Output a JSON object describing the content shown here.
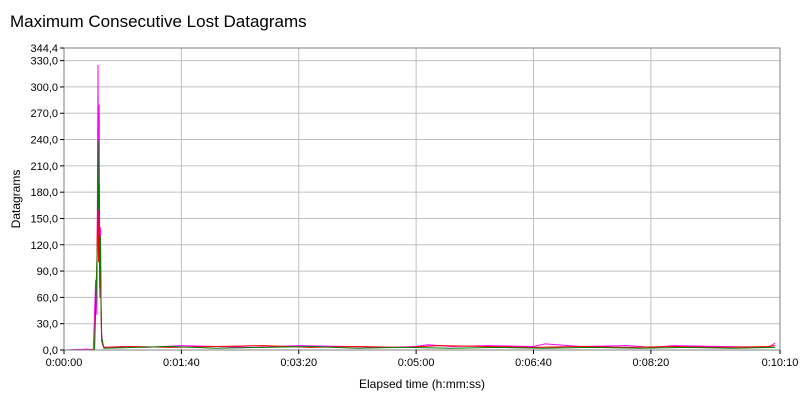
{
  "chart_data": {
    "type": "line",
    "title": "Maximum Consecutive Lost Datagrams",
    "xlabel": "Elapsed time (h:mm:ss)",
    "ylabel": "Datagrams",
    "xlim": [
      0,
      610
    ],
    "ylim": [
      0,
      344.4
    ],
    "x_ticks": [
      {
        "value": 0,
        "label": "0:00:00"
      },
      {
        "value": 100,
        "label": "0:01:40"
      },
      {
        "value": 200,
        "label": "0:03:20"
      },
      {
        "value": 300,
        "label": "0:05:00"
      },
      {
        "value": 400,
        "label": "0:06:40"
      },
      {
        "value": 500,
        "label": "0:08:20"
      },
      {
        "value": 610,
        "label": "0:10:10"
      }
    ],
    "y_ticks": [
      {
        "value": 0,
        "label": "0,0"
      },
      {
        "value": 30,
        "label": "30,0"
      },
      {
        "value": 60,
        "label": "60,0"
      },
      {
        "value": 90,
        "label": "90,0"
      },
      {
        "value": 120,
        "label": "120,0"
      },
      {
        "value": 150,
        "label": "150,0"
      },
      {
        "value": 180,
        "label": "180,0"
      },
      {
        "value": 210,
        "label": "210,0"
      },
      {
        "value": 240,
        "label": "240,0"
      },
      {
        "value": 270,
        "label": "270,0"
      },
      {
        "value": 300,
        "label": "300,0"
      },
      {
        "value": 330,
        "label": "330,0"
      },
      {
        "value": 344.4,
        "label": "344,4"
      }
    ],
    "grid": true,
    "legend": "none",
    "series": [
      {
        "color": "#ff00ff",
        "points": [
          [
            0,
            0
          ],
          [
            20,
            1
          ],
          [
            25,
            0
          ],
          [
            27,
            80
          ],
          [
            28,
            40
          ],
          [
            28.5,
            200
          ],
          [
            29,
            325
          ],
          [
            29.5,
            120
          ],
          [
            30,
            280
          ],
          [
            30.5,
            60
          ],
          [
            31,
            140
          ],
          [
            31.5,
            50
          ],
          [
            32,
            20
          ],
          [
            33,
            5
          ],
          [
            35,
            3
          ],
          [
            50,
            4
          ],
          [
            70,
            3
          ],
          [
            100,
            5
          ],
          [
            130,
            4
          ],
          [
            160,
            3
          ],
          [
            200,
            5
          ],
          [
            240,
            4
          ],
          [
            280,
            3
          ],
          [
            300,
            4
          ],
          [
            310,
            6
          ],
          [
            330,
            4
          ],
          [
            360,
            5
          ],
          [
            400,
            4
          ],
          [
            410,
            7
          ],
          [
            440,
            4
          ],
          [
            480,
            5
          ],
          [
            500,
            3
          ],
          [
            520,
            5
          ],
          [
            560,
            4
          ],
          [
            600,
            3
          ],
          [
            606,
            8
          ]
        ]
      },
      {
        "color": "#ff0000",
        "points": [
          [
            0,
            0
          ],
          [
            20,
            0
          ],
          [
            26,
            1
          ],
          [
            27,
            60
          ],
          [
            28,
            100
          ],
          [
            28.5,
            150
          ],
          [
            29,
            170
          ],
          [
            29.5,
            100
          ],
          [
            30,
            130
          ],
          [
            30.5,
            70
          ],
          [
            31,
            90
          ],
          [
            32,
            10
          ],
          [
            34,
            3
          ],
          [
            60,
            4
          ],
          [
            90,
            3
          ],
          [
            130,
            4
          ],
          [
            170,
            5
          ],
          [
            210,
            3
          ],
          [
            250,
            4
          ],
          [
            290,
            3
          ],
          [
            320,
            5
          ],
          [
            360,
            4
          ],
          [
            400,
            3
          ],
          [
            440,
            4
          ],
          [
            480,
            3
          ],
          [
            520,
            4
          ],
          [
            560,
            3
          ],
          [
            600,
            4
          ],
          [
            606,
            5
          ]
        ]
      },
      {
        "color": "#008000",
        "points": [
          [
            0,
            0
          ],
          [
            20,
            0
          ],
          [
            26,
            0
          ],
          [
            27.5,
            70
          ],
          [
            28.5,
            130
          ],
          [
            29,
            240
          ],
          [
            29.5,
            160
          ],
          [
            30,
            190
          ],
          [
            30.5,
            90
          ],
          [
            31,
            130
          ],
          [
            31.5,
            60
          ],
          [
            32,
            15
          ],
          [
            34,
            2
          ],
          [
            60,
            3
          ],
          [
            90,
            4
          ],
          [
            130,
            2
          ],
          [
            170,
            3
          ],
          [
            210,
            4
          ],
          [
            250,
            2
          ],
          [
            290,
            3
          ],
          [
            330,
            2
          ],
          [
            370,
            3
          ],
          [
            410,
            2
          ],
          [
            450,
            3
          ],
          [
            490,
            2
          ],
          [
            530,
            3
          ],
          [
            570,
            2
          ],
          [
            606,
            3
          ]
        ]
      }
    ]
  }
}
